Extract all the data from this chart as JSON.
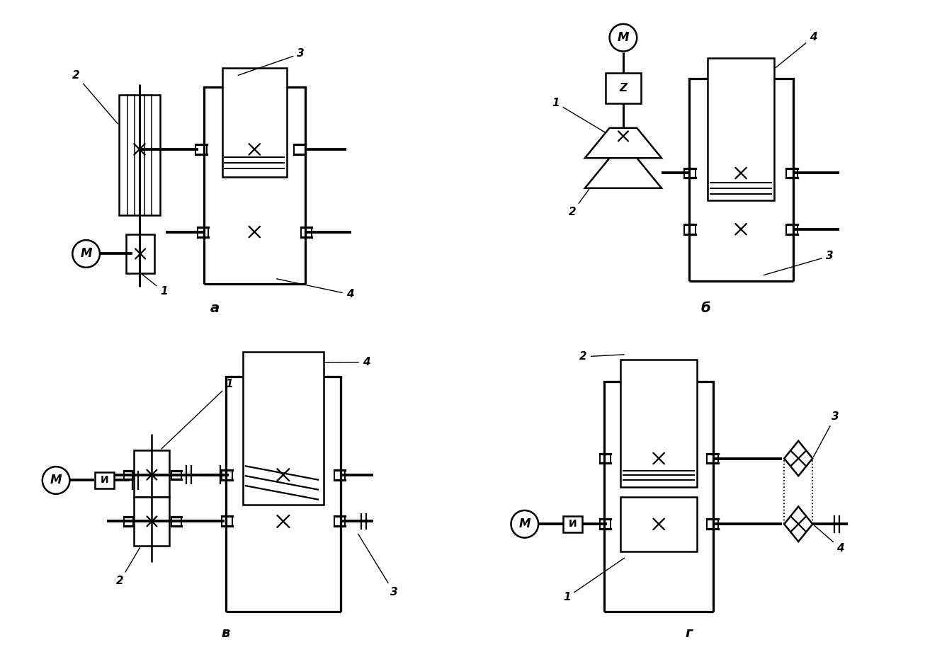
{
  "bg_color": "#ffffff",
  "line_color": "#000000",
  "lw": 1.8,
  "label_a": "a",
  "label_b": "б",
  "label_v": "в",
  "label_g": "г"
}
